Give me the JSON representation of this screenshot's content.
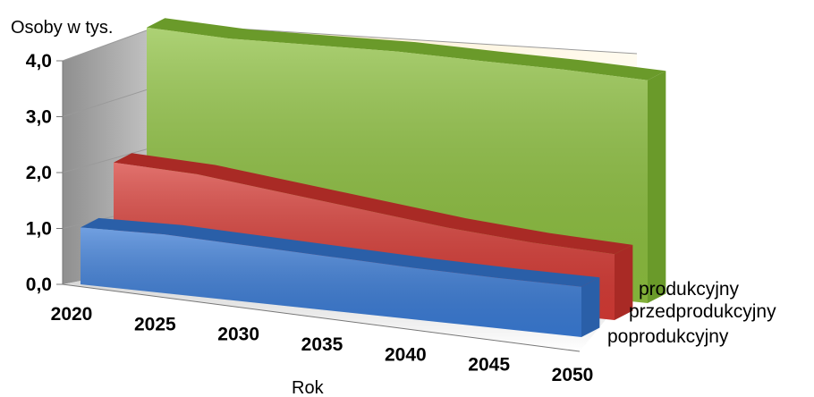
{
  "chart_data": {
    "type": "area",
    "subtype": "3d-area",
    "ylabel": "Osoby w tys.",
    "xlabel": "Rok",
    "ylim": [
      0,
      4
    ],
    "yticks": [
      "0,0",
      "1,0",
      "2,0",
      "3,0",
      "4,0"
    ],
    "x": [
      2020,
      2025,
      2030,
      2035,
      2040,
      2045,
      2050
    ],
    "xticks": [
      "2020",
      "2025",
      "2030",
      "2035",
      "2040",
      "2045",
      "2050"
    ],
    "grid": true,
    "series": [
      {
        "name": "poprodukcyjny",
        "color": "#3A7BD5",
        "values": [
          0.95,
          0.98,
          0.94,
          0.9,
          0.86,
          0.84,
          0.84
        ]
      },
      {
        "name": "przedprodukcyjny",
        "color": "#D63B35",
        "values": [
          1.75,
          1.7,
          1.55,
          1.4,
          1.25,
          1.15,
          1.1
        ]
      },
      {
        "name": "produkcyjny",
        "color": "#8DC03F",
        "values": [
          3.72,
          3.68,
          3.72,
          3.76,
          3.75,
          3.75,
          3.72
        ]
      }
    ]
  }
}
